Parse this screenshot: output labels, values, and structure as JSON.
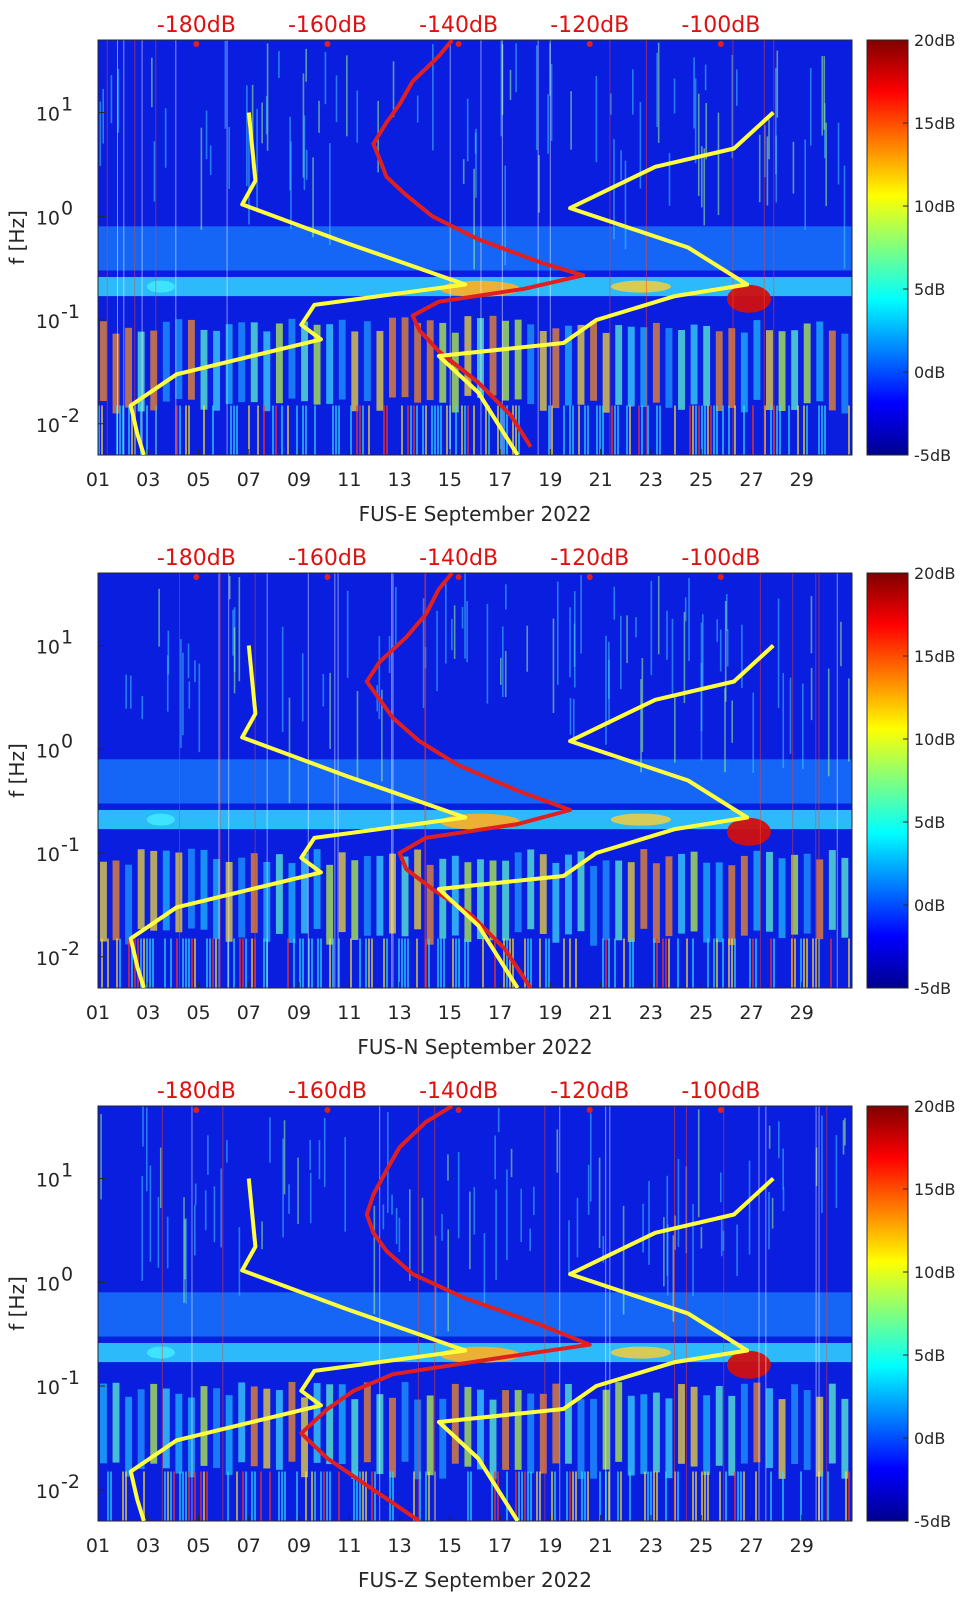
{
  "colors": {
    "cmap_low": "#00008f",
    "cmap_high": "#800000",
    "psd_curve": "#e02020",
    "noise_model": "#ffff40",
    "top_labels": "#e01010",
    "text": "#262626"
  },
  "chart_data": [
    {
      "type": "heatmap",
      "title": "FUS-E September 2022",
      "xlabel": "FUS-E September 2022",
      "ylabel": "f [Hz]",
      "yscale": "log",
      "ylim": [
        0.005,
        50
      ],
      "xlim": [
        1,
        31
      ],
      "x_ticks": [
        "01",
        "03",
        "05",
        "07",
        "09",
        "11",
        "13",
        "15",
        "17",
        "19",
        "21",
        "23",
        "25",
        "27",
        "29"
      ],
      "x_tick_values": [
        1,
        3,
        5,
        7,
        9,
        11,
        13,
        15,
        17,
        19,
        21,
        23,
        25,
        27,
        29
      ],
      "y_ticks": [
        "10^-2",
        "10^-1",
        "10^0",
        "10^1"
      ],
      "y_tick_values": [
        0.01,
        0.1,
        1,
        10
      ],
      "top_axis_labels": [
        "-180dB",
        "-160dB",
        "-140dB",
        "-120dB",
        "-100dB"
      ],
      "top_axis_values": [
        -180,
        -160,
        -140,
        -120,
        -100
      ],
      "colorbar_labels": [
        "20dB",
        "15dB",
        "10dB",
        "5dB",
        "0dB",
        "-5dB"
      ],
      "colorbar_values": [
        20,
        15,
        10,
        5,
        0,
        -5
      ],
      "series": [
        {
          "name": "PSD median (dB, top axis)",
          "color": "red",
          "points": [
            [
              -141,
              50
            ],
            [
              -143,
              35
            ],
            [
              -147,
              20
            ],
            [
              -149,
              12
            ],
            [
              -151,
              8
            ],
            [
              -153,
              5
            ],
            [
              -152,
              3.5
            ],
            [
              -151,
              2.4
            ],
            [
              -148,
              1.6
            ],
            [
              -144,
              1.0
            ],
            [
              -137,
              0.6
            ],
            [
              -127,
              0.35
            ],
            [
              -121,
              0.27
            ],
            [
              -130,
              0.2
            ],
            [
              -143,
              0.15
            ],
            [
              -147,
              0.11
            ],
            [
              -146,
              0.08
            ],
            [
              -143,
              0.05
            ],
            [
              -137,
              0.025
            ],
            [
              -132,
              0.012
            ],
            [
              -129,
              0.006
            ]
          ]
        },
        {
          "name": "Noise model (dB, top axis)",
          "color": "yellow",
          "points": [
            [
              -172,
              10
            ],
            [
              -171,
              2.2
            ],
            [
              -173,
              1.3
            ],
            [
              -157,
              0.55
            ],
            [
              -139,
              0.22
            ],
            [
              -162,
              0.14
            ],
            [
              -164,
              0.09
            ],
            [
              -161,
              0.065
            ],
            [
              -183,
              0.03
            ],
            [
              -190,
              0.015
            ],
            [
              -189,
              0.008
            ],
            [
              -188,
              0.005
            ]
          ]
        },
        {
          "name": "Noise model high (dB, top axis)",
          "color": "yellow",
          "points": [
            [
              -131,
              0.005
            ],
            [
              -137,
              0.02
            ],
            [
              -143,
              0.045
            ],
            [
              -124,
              0.06
            ],
            [
              -119,
              0.1
            ],
            [
              -107,
              0.17
            ],
            [
              -96,
              0.22
            ],
            [
              -105,
              0.5
            ],
            [
              -123,
              1.2
            ],
            [
              -110,
              3.0
            ],
            [
              -98,
              4.5
            ],
            [
              -92,
              10
            ]
          ]
        }
      ]
    },
    {
      "type": "heatmap",
      "title": "FUS-N September 2022",
      "xlabel": "FUS-N September 2022",
      "ylabel": "f [Hz]",
      "yscale": "log",
      "ylim": [
        0.005,
        50
      ],
      "xlim": [
        1,
        31
      ],
      "x_ticks": [
        "01",
        "03",
        "05",
        "07",
        "09",
        "11",
        "13",
        "15",
        "17",
        "19",
        "21",
        "23",
        "25",
        "27",
        "29"
      ],
      "x_tick_values": [
        1,
        3,
        5,
        7,
        9,
        11,
        13,
        15,
        17,
        19,
        21,
        23,
        25,
        27,
        29
      ],
      "y_ticks": [
        "10^-2",
        "10^-1",
        "10^0",
        "10^1"
      ],
      "y_tick_values": [
        0.01,
        0.1,
        1,
        10
      ],
      "top_axis_labels": [
        "-180dB",
        "-160dB",
        "-140dB",
        "-120dB",
        "-100dB"
      ],
      "top_axis_values": [
        -180,
        -160,
        -140,
        -120,
        -100
      ],
      "colorbar_labels": [
        "20dB",
        "15dB",
        "10dB",
        "5dB",
        "0dB",
        "-5dB"
      ],
      "colorbar_values": [
        20,
        15,
        10,
        5,
        0,
        -5
      ],
      "series": [
        {
          "name": "PSD median (dB, top axis)",
          "color": "red",
          "points": [
            [
              -141,
              50
            ],
            [
              -143,
              35
            ],
            [
              -145,
              20
            ],
            [
              -148,
              12
            ],
            [
              -152,
              7
            ],
            [
              -154,
              4.5
            ],
            [
              -152,
              3
            ],
            [
              -150,
              2
            ],
            [
              -146,
              1.2
            ],
            [
              -140,
              0.7
            ],
            [
              -131,
              0.4
            ],
            [
              -123,
              0.26
            ],
            [
              -131,
              0.19
            ],
            [
              -145,
              0.14
            ],
            [
              -149,
              0.1
            ],
            [
              -148,
              0.07
            ],
            [
              -144,
              0.045
            ],
            [
              -138,
              0.025
            ],
            [
              -133,
              0.012
            ],
            [
              -129,
              0.005
            ]
          ]
        },
        {
          "name": "Noise model (dB, top axis)",
          "color": "yellow",
          "points": [
            [
              -172,
              10
            ],
            [
              -171,
              2.2
            ],
            [
              -173,
              1.3
            ],
            [
              -157,
              0.55
            ],
            [
              -139,
              0.22
            ],
            [
              -162,
              0.14
            ],
            [
              -164,
              0.09
            ],
            [
              -161,
              0.065
            ],
            [
              -183,
              0.03
            ],
            [
              -190,
              0.015
            ],
            [
              -189,
              0.008
            ],
            [
              -188,
              0.005
            ]
          ]
        },
        {
          "name": "Noise model high (dB, top axis)",
          "color": "yellow",
          "points": [
            [
              -131,
              0.005
            ],
            [
              -137,
              0.02
            ],
            [
              -143,
              0.045
            ],
            [
              -124,
              0.06
            ],
            [
              -119,
              0.1
            ],
            [
              -107,
              0.17
            ],
            [
              -96,
              0.22
            ],
            [
              -105,
              0.5
            ],
            [
              -123,
              1.2
            ],
            [
              -110,
              3.0
            ],
            [
              -98,
              4.5
            ],
            [
              -92,
              10
            ]
          ]
        }
      ]
    },
    {
      "type": "heatmap",
      "title": "FUS-Z September 2022",
      "xlabel": "FUS-Z September 2022",
      "ylabel": "f [Hz]",
      "yscale": "log",
      "ylim": [
        0.005,
        50
      ],
      "xlim": [
        1,
        31
      ],
      "x_ticks": [
        "01",
        "03",
        "05",
        "07",
        "09",
        "11",
        "13",
        "15",
        "17",
        "19",
        "21",
        "23",
        "25",
        "27",
        "29"
      ],
      "x_tick_values": [
        1,
        3,
        5,
        7,
        9,
        11,
        13,
        15,
        17,
        19,
        21,
        23,
        25,
        27,
        29
      ],
      "y_ticks": [
        "10^-2",
        "10^-1",
        "10^0",
        "10^1"
      ],
      "y_tick_values": [
        0.01,
        0.1,
        1,
        10
      ],
      "top_axis_labels": [
        "-180dB",
        "-160dB",
        "-140dB",
        "-120dB",
        "-100dB"
      ],
      "top_axis_values": [
        -180,
        -160,
        -140,
        -120,
        -100
      ],
      "colorbar_labels": [
        "20dB",
        "15dB",
        "10dB",
        "5dB",
        "0dB",
        "-5dB"
      ],
      "colorbar_values": [
        20,
        15,
        10,
        5,
        0,
        -5
      ],
      "series": [
        {
          "name": "PSD median (dB, top axis)",
          "color": "red",
          "points": [
            [
              -141,
              50
            ],
            [
              -145,
              35
            ],
            [
              -149,
              20
            ],
            [
              -151,
              12
            ],
            [
              -153,
              7
            ],
            [
              -154,
              4.5
            ],
            [
              -153,
              3
            ],
            [
              -151,
              2
            ],
            [
              -147,
              1.2
            ],
            [
              -139,
              0.7
            ],
            [
              -128,
              0.4
            ],
            [
              -120,
              0.25
            ],
            [
              -133,
              0.19
            ],
            [
              -150,
              0.13
            ],
            [
              -156,
              0.09
            ],
            [
              -160,
              0.06
            ],
            [
              -164,
              0.035
            ],
            [
              -160,
              0.02
            ],
            [
              -153,
              0.01
            ],
            [
              -146,
              0.005
            ]
          ]
        },
        {
          "name": "Noise model (dB, top axis)",
          "color": "yellow",
          "points": [
            [
              -172,
              10
            ],
            [
              -171,
              2.2
            ],
            [
              -173,
              1.3
            ],
            [
              -157,
              0.55
            ],
            [
              -139,
              0.22
            ],
            [
              -162,
              0.14
            ],
            [
              -164,
              0.09
            ],
            [
              -161,
              0.065
            ],
            [
              -183,
              0.03
            ],
            [
              -190,
              0.015
            ],
            [
              -189,
              0.008
            ],
            [
              -188,
              0.005
            ]
          ]
        },
        {
          "name": "Noise model high (dB, top axis)",
          "color": "yellow",
          "points": [
            [
              -131,
              0.005
            ],
            [
              -137,
              0.02
            ],
            [
              -143,
              0.045
            ],
            [
              -124,
              0.06
            ],
            [
              -119,
              0.1
            ],
            [
              -107,
              0.17
            ],
            [
              -96,
              0.22
            ],
            [
              -105,
              0.5
            ],
            [
              -123,
              1.2
            ],
            [
              -110,
              3.0
            ],
            [
              -98,
              4.5
            ],
            [
              -92,
              10
            ]
          ]
        }
      ]
    }
  ]
}
